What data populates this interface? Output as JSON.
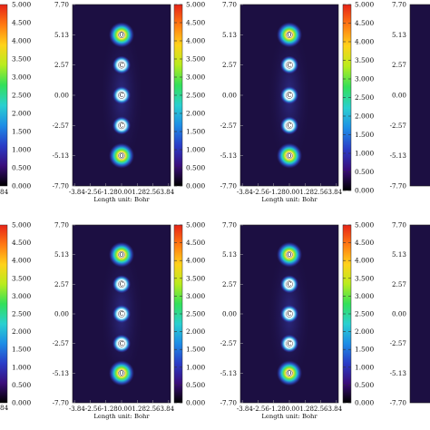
{
  "chart_data": {
    "type": "heatmap",
    "colorbar_ticks": [
      "5.000",
      "4.500",
      "4.000",
      "3.500",
      "3.000",
      "2.500",
      "2.000",
      "1.500",
      "1.000",
      "0.500",
      "0.000"
    ],
    "colorbar_range": [
      0,
      5
    ],
    "colormap": [
      "#000000",
      "#3a0d7a",
      "#2a3cc7",
      "#1e8de6",
      "#2ad0d0",
      "#32e05a",
      "#b8ec1e",
      "#ffd21a",
      "#ff7a12",
      "#e62317"
    ],
    "background_color": "#1c0f42",
    "panels": [
      {
        "id": "top-1",
        "y_ticks": [
          "7.70",
          "5.13",
          "2.57",
          "0.00",
          "-2.57",
          "-5.13",
          "-7.70"
        ],
        "x_ticks": [
          "-3.84",
          "-2.56",
          "-1.28",
          "0.00",
          "1.28",
          "2.56",
          "3.84"
        ],
        "x_tick_text": "-3.84-2.56-1.280.001.282.563.84",
        "xlabel": "Length unit: Bohr",
        "atoms": [
          {
            "label": "O",
            "y": 5.13
          },
          {
            "label": "C",
            "y": 2.57
          },
          {
            "label": "C",
            "y": 0.0
          },
          {
            "label": "C",
            "y": -2.57
          },
          {
            "label": "O",
            "y": -5.13
          }
        ]
      },
      {
        "id": "top-2",
        "y_ticks": [
          "7.70",
          "5.13",
          "2.57",
          "0.00",
          "-2.57",
          "-5.13",
          "-7.70"
        ],
        "x_ticks": [
          "-3.84",
          "-2.56",
          "-1.28",
          "0.00",
          "1.28",
          "2.56",
          "3.84"
        ],
        "x_tick_text": "-3.84-2.56-1.280.001.282.563.84",
        "xlabel": "Length unit: Bohr",
        "atoms": [
          {
            "label": "O",
            "y": 5.13
          },
          {
            "label": "C",
            "y": 2.57
          },
          {
            "label": "C",
            "y": 0.0
          },
          {
            "label": "C",
            "y": -2.57
          },
          {
            "label": "O",
            "y": -5.13
          }
        ]
      },
      {
        "id": "bottom-1",
        "y_ticks": [
          "7.70",
          "5.13",
          "2.57",
          "0.00",
          "-2.57",
          "-5.13",
          "-7.70"
        ],
        "x_ticks": [
          "-3.84",
          "-2.56",
          "-1.28",
          "0.00",
          "1.28",
          "2.56",
          "3.84"
        ],
        "x_tick_text": "-3.84-2.56-1.280.001.282.563.84",
        "xlabel": "Length unit: Bohr",
        "atoms": [
          {
            "label": "O",
            "y": 5.13
          },
          {
            "label": "C",
            "y": 2.57
          },
          {
            "label": "C",
            "y": 0.0
          },
          {
            "label": "C",
            "y": -2.57
          },
          {
            "label": "O",
            "y": -5.13
          }
        ]
      },
      {
        "id": "bottom-2",
        "y_ticks": [
          "7.70",
          "5.13",
          "2.57",
          "0.00",
          "-2.57",
          "-5.13",
          "-7.70"
        ],
        "x_ticks": [
          "-3.84",
          "-2.56",
          "-1.28",
          "0.00",
          "1.28",
          "2.56",
          "3.84"
        ],
        "x_tick_text": "-3.84-2.56-1.280.001.282.563.84",
        "xlabel": "Length unit: Bohr",
        "atoms": [
          {
            "label": "O",
            "y": 5.13
          },
          {
            "label": "C",
            "y": 2.57
          },
          {
            "label": "C",
            "y": 0.0
          },
          {
            "label": "C",
            "y": -2.57
          },
          {
            "label": "O",
            "y": -5.13
          }
        ]
      }
    ],
    "partial_panels": {
      "right_y_ticks": [
        "7.70",
        "5.13",
        "2.57",
        "0.00",
        "-2.57",
        "-5.13",
        "-7.70"
      ],
      "left_colorbar_ticks": [
        "5.000",
        "4.500",
        "4.000",
        "3.500",
        "3.000",
        "2.500",
        "2.000",
        "1.500",
        "1.000",
        "0.500",
        "0.000"
      ],
      "clipped_left_tick": "84"
    }
  }
}
